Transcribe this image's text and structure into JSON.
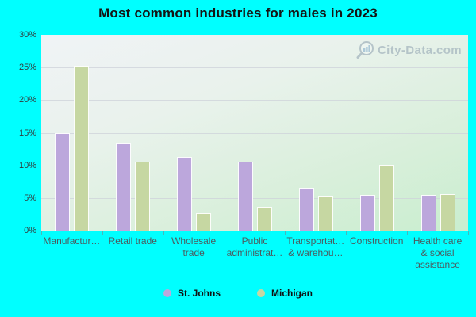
{
  "title": "Most common industries for males in 2023",
  "watermark": "City-Data.com",
  "colors": {
    "background": "#00ffff",
    "st_johns_bar": "#bca7dc",
    "michigan_bar": "#c6d7a2",
    "grid": "#cdd2da",
    "axis_text": "#4c5a5e",
    "title_text": "#141414",
    "watermark_text": "#a9b9c1"
  },
  "chart_data": {
    "type": "bar",
    "title": "Most common industries for males in 2023",
    "categories": [
      "Manufactur…",
      "Retail trade",
      "Wholesale trade",
      "Public administrat…",
      "Transportat… & warehou…",
      "Construction",
      "Health care & social assistance"
    ],
    "category_lines": [
      [
        "Manufactur…"
      ],
      [
        "Retail trade"
      ],
      [
        "Wholesale",
        "trade"
      ],
      [
        "Public",
        "administrat…"
      ],
      [
        "Transportat…",
        "& warehou…"
      ],
      [
        "Construction"
      ],
      [
        "Health care",
        "& social",
        "assistance"
      ]
    ],
    "series": [
      {
        "name": "St. Johns",
        "color": "#bca7dc",
        "values": [
          14.8,
          13.2,
          11.2,
          10.4,
          6.4,
          5.4,
          5.4
        ]
      },
      {
        "name": "Michigan",
        "color": "#c6d7a2",
        "values": [
          25.2,
          10.4,
          2.5,
          3.5,
          5.2,
          10.0,
          5.5
        ]
      }
    ],
    "ylim": [
      0,
      30
    ],
    "ytick_step": 5,
    "yticks": [
      "0%",
      "5%",
      "10%",
      "15%",
      "20%",
      "25%",
      "30%"
    ],
    "xlabel": "",
    "ylabel": "",
    "grid": true,
    "legend_position": "bottom"
  }
}
